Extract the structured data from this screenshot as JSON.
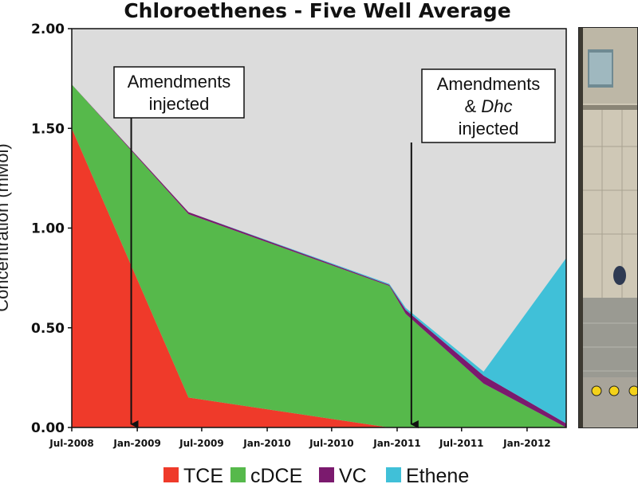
{
  "chart_data": {
    "type": "area",
    "stacked": true,
    "title": "Chloroethenes - Five Well Average",
    "ylabel": "Concentration (mMol)",
    "xlabel": "",
    "ylim": [
      0,
      2.0
    ],
    "yticks": [
      "0.00",
      "0.50",
      "1.00",
      "1.50",
      "2.00"
    ],
    "ytick_values": [
      0,
      0.5,
      1.0,
      1.5,
      2.0
    ],
    "xlim": [
      "2008-07-01",
      "2012-04-20"
    ],
    "xticks": [
      {
        "label": "Jul-2008",
        "date": "2008-07-01"
      },
      {
        "label": "Jan-2009",
        "date": "2009-01-01"
      },
      {
        "label": "Jul-2009",
        "date": "2009-07-01"
      },
      {
        "label": "Jan-2010",
        "date": "2010-01-01"
      },
      {
        "label": "Jul-2010",
        "date": "2010-07-01"
      },
      {
        "label": "Jan-2011",
        "date": "2011-01-01"
      },
      {
        "label": "Jul-2011",
        "date": "2011-07-01"
      },
      {
        "label": "Jan-2012",
        "date": "2012-01-01"
      }
    ],
    "x": [
      "2008-07-01",
      "2009-05-25",
      "2010-12-10",
      "2011-01-25",
      "2011-09-01",
      "2012-04-20"
    ],
    "series": [
      {
        "name": "TCE",
        "color": "#ef3a2a",
        "values": [
          1.5,
          0.15,
          0.0,
          0.0,
          0.0,
          0.0
        ]
      },
      {
        "name": "cDCE",
        "color": "#56b94b",
        "values": [
          0.22,
          0.92,
          0.71,
          0.57,
          0.22,
          0.0
        ]
      },
      {
        "name": "VC",
        "color": "#7b1a6e",
        "values": [
          0.0,
          0.01,
          0.005,
          0.02,
          0.04,
          0.02
        ]
      },
      {
        "name": "Ethene",
        "color": "#40c0d8",
        "values": [
          0.0,
          0.0,
          0.005,
          0.01,
          0.02,
          0.83
        ]
      }
    ],
    "annotations": [
      {
        "lines": [
          "Amendments",
          "injected"
        ],
        "arrow_date": "2008-12-15",
        "arrow_y": 0.0
      },
      {
        "lines": [
          "Amendments",
          "& ",
          "Dhc",
          "injected"
        ],
        "arrow_date": "2011-02-10",
        "arrow_y": 0.0
      }
    ],
    "background_color": "#dcdcdc",
    "legend_position": "bottom"
  }
}
